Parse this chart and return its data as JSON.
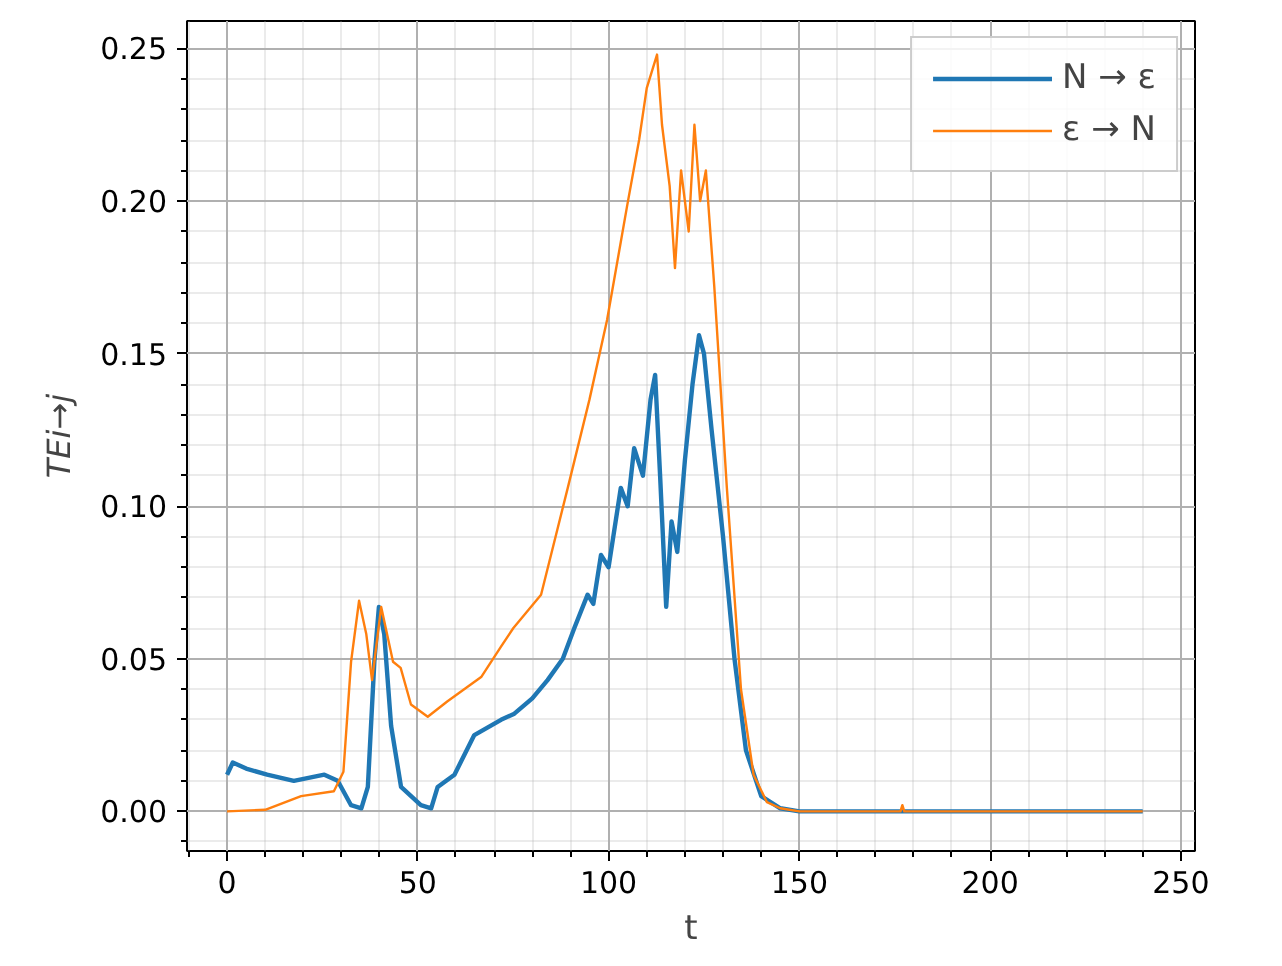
{
  "chart_data": {
    "type": "line",
    "xlabel": "t",
    "ylabel": "TEi→j",
    "xlim": [
      -10.5,
      253.7
    ],
    "ylim": [
      -0.013,
      0.259
    ],
    "xticks": [
      0,
      50,
      100,
      150,
      200,
      250
    ],
    "yticks": [
      {
        "value": 0,
        "label": "0.00"
      },
      {
        "value": 0.05,
        "label": "0.05"
      },
      {
        "value": 0.1,
        "label": "0.10"
      },
      {
        "value": 0.15,
        "label": "0.15"
      },
      {
        "value": 0.2,
        "label": "0.20"
      },
      {
        "value": 0.25,
        "label": "0.25"
      }
    ],
    "grid": true,
    "legend": "top right",
    "line_style": "solid",
    "series": [
      {
        "name": "N → ε",
        "color": "#1f77b4",
        "x": [
          0,
          1.5,
          5,
          10.5,
          17.5,
          25.5,
          29,
          32.5,
          35.2,
          36.9,
          38.6,
          39.8,
          41.2,
          43,
          45.6,
          50.8,
          53.5,
          55.2,
          59.6,
          64.8,
          71.8,
          75.3,
          80,
          84,
          88,
          91,
          94.5,
          96,
          98,
          100,
          103.2,
          105,
          106.7,
          109,
          111,
          112.2,
          113.5,
          115.1,
          116.5,
          118,
          120,
          122,
          123.7,
          125,
          127,
          130,
          133,
          136,
          140,
          145,
          150,
          160,
          200,
          240
        ],
        "values": [
          0.012,
          0.016,
          0.014,
          0.012,
          0.01,
          0.012,
          0.01,
          0.002,
          0.001,
          0.008,
          0.049,
          0.067,
          0.058,
          0.028,
          0.008,
          0.002,
          0.001,
          0.008,
          0.012,
          0.025,
          0.03,
          0.032,
          0.037,
          0.043,
          0.05,
          0.06,
          0.071,
          0.068,
          0.084,
          0.08,
          0.106,
          0.1,
          0.119,
          0.11,
          0.135,
          0.143,
          0.11,
          0.067,
          0.095,
          0.085,
          0.115,
          0.14,
          0.156,
          0.15,
          0.125,
          0.09,
          0.05,
          0.02,
          0.005,
          0.001,
          0,
          0,
          0,
          0
        ]
      },
      {
        "name": "ε → N",
        "color": "#ff7f0e",
        "x": [
          0,
          10,
          19.4,
          28,
          30.5,
          32.5,
          34.6,
          36.5,
          38,
          40.4,
          43.5,
          45.5,
          48.2,
          52.6,
          57.7,
          66.6,
          71.8,
          75,
          82.3,
          89.3,
          95,
          99.6,
          104.8,
          108,
          110,
          112.7,
          114,
          116,
          117.4,
          119,
          121,
          122.5,
          124,
          125.5,
          127.7,
          131,
          134.7,
          138,
          141.5,
          145,
          150,
          160,
          176.5,
          177,
          177.5,
          200,
          240
        ],
        "values": [
          0,
          0.0005,
          0.005,
          0.0066,
          0.013,
          0.049,
          0.069,
          0.058,
          0.043,
          0.067,
          0.049,
          0.047,
          0.035,
          0.031,
          0.036,
          0.044,
          0.054,
          0.06,
          0.071,
          0.106,
          0.135,
          0.161,
          0.198,
          0.22,
          0.237,
          0.248,
          0.225,
          0.205,
          0.178,
          0.21,
          0.19,
          0.225,
          0.2,
          0.21,
          0.172,
          0.106,
          0.04,
          0.012,
          0.003,
          0.001,
          0,
          0,
          0,
          0.002,
          0,
          0,
          0
        ]
      }
    ]
  }
}
